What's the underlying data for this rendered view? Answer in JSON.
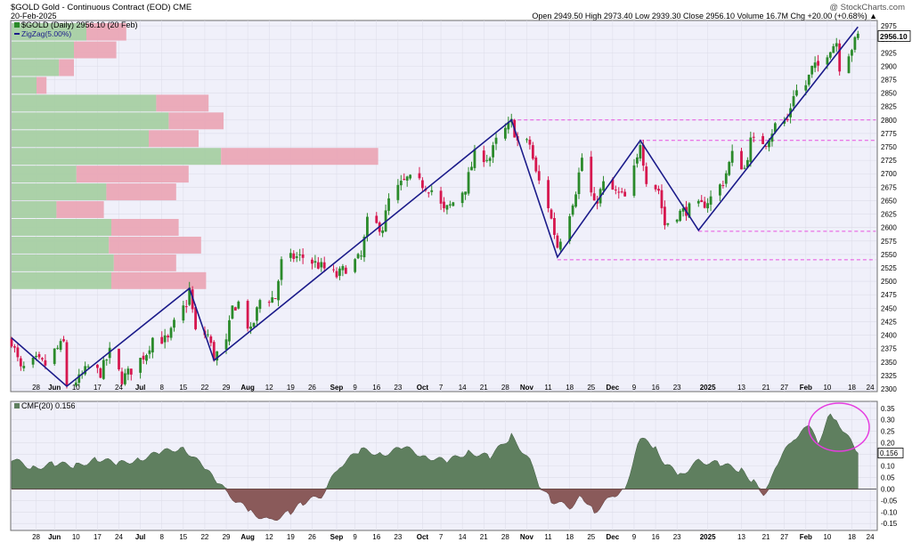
{
  "header": {
    "title": "$GOLD Gold - Continuous Contract (EOD) CME",
    "watermark": "@ StockCharts.com",
    "date": "20-Feb-2025",
    "ohlc": "Open 2949.50  High 2973.40  Low 2939.30  Close 2956.10  Volume 16.7M  Chg +20.00 (+0.68%) ▲"
  },
  "legend": {
    "price": "$GOLD (Daily) 2956.10 (20 Feb)",
    "zigzag": "ZigZag(5.00%)",
    "cmf": "CMF(20) 0.156"
  },
  "colors": {
    "up": "#2b8a2b",
    "down": "#d6174f",
    "zigzag": "#1b1b8a",
    "support": "#e84fe0",
    "cmf_pos": "#5f7f5f",
    "cmf_neg": "#8a5a5a",
    "vbp_green": "#a6cfa3",
    "vbp_red": "#eaa7b6",
    "plot_bg": "#f0f0fa"
  },
  "chart_data": {
    "type": "candlestick",
    "price_axis": {
      "ylim": [
        2295,
        2985
      ],
      "ticks": [
        2300,
        2325,
        2350,
        2375,
        2400,
        2425,
        2450,
        2475,
        2500,
        2525,
        2550,
        2575,
        2600,
        2625,
        2650,
        2675,
        2700,
        2725,
        2750,
        2775,
        2800,
        2825,
        2850,
        2875,
        2900,
        2925,
        2950,
        2975
      ],
      "last_price_label": "2956.10"
    },
    "x_axis": {
      "labels": [
        "28",
        "Jun",
        "10",
        "17",
        "24",
        "Jul",
        "8",
        "15",
        "22",
        "29",
        "Aug",
        "12",
        "19",
        "26",
        "Sep",
        "9",
        "16",
        "23",
        "Oct",
        "7",
        "14",
        "21",
        "28",
        "Nov",
        "11",
        "18",
        "25",
        "Dec",
        "9",
        "16",
        "23",
        "2025",
        "13",
        "21",
        "27",
        "Feb",
        "10",
        "18",
        "24"
      ]
    },
    "zigzag": [
      [
        "2024-05-20",
        2395
      ],
      [
        "2024-06-07",
        2305
      ],
      [
        "2024-07-17",
        2487
      ],
      [
        "2024-07-25",
        2353
      ],
      [
        "2024-10-30",
        2800
      ],
      [
        "2024-11-14",
        2545
      ],
      [
        "2024-12-11",
        2762
      ],
      [
        "2024-12-30",
        2595
      ],
      [
        "2025-02-20",
        2973
      ]
    ],
    "support_lines": [
      {
        "from": "2024-10-30",
        "level": 2800
      },
      {
        "from": "2024-12-11",
        "level": 2762
      },
      {
        "from": "2024-12-30",
        "level": 2593
      },
      {
        "from": "2024-11-14",
        "level": 2540
      }
    ],
    "price_path": [
      [
        "2024-05-20",
        2390
      ],
      [
        "2024-05-23",
        2335
      ],
      [
        "2024-05-28",
        2352
      ],
      [
        "2024-05-31",
        2345
      ],
      [
        "2024-06-03",
        2370
      ],
      [
        "2024-06-06",
        2385
      ],
      [
        "2024-06-07",
        2308
      ],
      [
        "2024-06-11",
        2318
      ],
      [
        "2024-06-14",
        2340
      ],
      [
        "2024-06-18",
        2330
      ],
      [
        "2024-06-21",
        2368
      ],
      [
        "2024-06-25",
        2318
      ],
      [
        "2024-06-28",
        2335
      ],
      [
        "2024-07-03",
        2368
      ],
      [
        "2024-07-05",
        2395
      ],
      [
        "2024-07-10",
        2390
      ],
      [
        "2024-07-12",
        2420
      ],
      [
        "2024-07-16",
        2460
      ],
      [
        "2024-07-17",
        2485
      ],
      [
        "2024-07-19",
        2405
      ],
      [
        "2024-07-23",
        2400
      ],
      [
        "2024-07-25",
        2360
      ],
      [
        "2024-07-29",
        2385
      ],
      [
        "2024-07-31",
        2450
      ],
      [
        "2024-08-02",
        2460
      ],
      [
        "2024-08-06",
        2405
      ],
      [
        "2024-08-09",
        2465
      ],
      [
        "2024-08-14",
        2470
      ],
      [
        "2024-08-16",
        2535
      ],
      [
        "2024-08-20",
        2545
      ],
      [
        "2024-08-23",
        2545
      ],
      [
        "2024-08-28",
        2530
      ],
      [
        "2024-09-03",
        2510
      ],
      [
        "2024-09-06",
        2525
      ],
      [
        "2024-09-11",
        2545
      ],
      [
        "2024-09-13",
        2610
      ],
      [
        "2024-09-18",
        2600
      ],
      [
        "2024-09-20",
        2650
      ],
      [
        "2024-09-24",
        2680
      ],
      [
        "2024-09-26",
        2690
      ],
      [
        "2024-10-01",
        2680
      ],
      [
        "2024-10-04",
        2670
      ],
      [
        "2024-10-08",
        2630
      ],
      [
        "2024-10-10",
        2640
      ],
      [
        "2024-10-15",
        2675
      ],
      [
        "2024-10-18",
        2735
      ],
      [
        "2024-10-23",
        2730
      ],
      [
        "2024-10-25",
        2760
      ],
      [
        "2024-10-30",
        2795
      ],
      [
        "2024-11-01",
        2760
      ],
      [
        "2024-11-05",
        2755
      ],
      [
        "2024-11-07",
        2700
      ],
      [
        "2024-11-11",
        2640
      ],
      [
        "2024-11-14",
        2565
      ],
      [
        "2024-11-18",
        2630
      ],
      [
        "2024-11-20",
        2670
      ],
      [
        "2024-11-22",
        2730
      ],
      [
        "2024-11-26",
        2640
      ],
      [
        "2024-11-29",
        2680
      ],
      [
        "2024-12-03",
        2665
      ],
      [
        "2024-12-06",
        2655
      ],
      [
        "2024-12-10",
        2725
      ],
      [
        "2024-12-11",
        2760
      ],
      [
        "2024-12-13",
        2690
      ],
      [
        "2024-12-17",
        2670
      ],
      [
        "2024-12-19",
        2605
      ],
      [
        "2024-12-23",
        2625
      ],
      [
        "2024-12-27",
        2635
      ],
      [
        "2024-12-31",
        2640
      ],
      [
        "2025-01-03",
        2655
      ],
      [
        "2025-01-07",
        2685
      ],
      [
        "2025-01-10",
        2735
      ],
      [
        "2025-01-14",
        2710
      ],
      [
        "2025-01-16",
        2760
      ],
      [
        "2025-01-21",
        2760
      ],
      [
        "2025-01-24",
        2790
      ],
      [
        "2025-01-28",
        2800
      ],
      [
        "2025-01-30",
        2850
      ],
      [
        "2025-02-03",
        2865
      ],
      [
        "2025-02-05",
        2895
      ],
      [
        "2025-02-07",
        2900
      ],
      [
        "2025-02-11",
        2935
      ],
      [
        "2025-02-13",
        2945
      ],
      [
        "2025-02-14",
        2900
      ],
      [
        "2025-02-18",
        2935
      ],
      [
        "2025-02-20",
        2956
      ]
    ],
    "volume_by_price": [
      {
        "range": [
          2946,
          2980
        ],
        "up": 0.3,
        "down": 0.16
      },
      {
        "range": [
          2913,
          2946
        ],
        "up": 0.25,
        "down": 0.17
      },
      {
        "range": [
          2880,
          2913
        ],
        "up": 0.19,
        "down": 0.06
      },
      {
        "range": [
          2847,
          2880
        ],
        "up": 0.1,
        "down": 0.04
      },
      {
        "range": [
          2814,
          2847
        ],
        "up": 0.58,
        "down": 0.21
      },
      {
        "range": [
          2781,
          2814
        ],
        "up": 0.63,
        "down": 0.22
      },
      {
        "range": [
          2748,
          2781
        ],
        "up": 0.55,
        "down": 0.2
      },
      {
        "range": [
          2715,
          2748
        ],
        "up": 0.84,
        "down": 0.63
      },
      {
        "range": [
          2682,
          2715
        ],
        "up": 0.26,
        "down": 0.45
      },
      {
        "range": [
          2649,
          2682
        ],
        "up": 0.38,
        "down": 0.28
      },
      {
        "range": [
          2616,
          2649
        ],
        "up": 0.18,
        "down": 0.19
      },
      {
        "range": [
          2583,
          2616
        ],
        "up": 0.4,
        "down": 0.27
      },
      {
        "range": [
          2550,
          2583
        ],
        "up": 0.39,
        "down": 0.37
      },
      {
        "range": [
          2517,
          2550
        ],
        "up": 0.41,
        "down": 0.25
      },
      {
        "range": [
          2484,
          2517
        ],
        "up": 0.4,
        "down": 0.38
      }
    ],
    "cmf": {
      "label": "CMF(20)",
      "value_label": "0.156",
      "ylim": [
        -0.18,
        0.38
      ],
      "ticks": [
        -0.15,
        -0.1,
        -0.05,
        0.0,
        0.05,
        0.1,
        0.15,
        0.2,
        0.25,
        0.3,
        0.35
      ],
      "points": [
        [
          "2024-05-20",
          0.13
        ],
        [
          "2024-05-27",
          0.09
        ],
        [
          "2024-06-03",
          0.11
        ],
        [
          "2024-06-10",
          0.1
        ],
        [
          "2024-06-17",
          0.13
        ],
        [
          "2024-06-24",
          0.11
        ],
        [
          "2024-07-01",
          0.13
        ],
        [
          "2024-07-08",
          0.16
        ],
        [
          "2024-07-15",
          0.18
        ],
        [
          "2024-07-22",
          0.09
        ],
        [
          "2024-07-26",
          0.03
        ],
        [
          "2024-08-01",
          -0.05
        ],
        [
          "2024-08-06",
          -0.1
        ],
        [
          "2024-08-12",
          -0.14
        ],
        [
          "2024-08-19",
          -0.1
        ],
        [
          "2024-08-23",
          -0.06
        ],
        [
          "2024-08-29",
          -0.03
        ],
        [
          "2024-09-04",
          0.1
        ],
        [
          "2024-09-11",
          0.17
        ],
        [
          "2024-09-18",
          0.15
        ],
        [
          "2024-09-25",
          0.18
        ],
        [
          "2024-10-02",
          0.14
        ],
        [
          "2024-10-09",
          0.12
        ],
        [
          "2024-10-16",
          0.16
        ],
        [
          "2024-10-23",
          0.14
        ],
        [
          "2024-10-30",
          0.23
        ],
        [
          "2024-11-05",
          0.12
        ],
        [
          "2024-11-08",
          0.02
        ],
        [
          "2024-11-12",
          -0.05
        ],
        [
          "2024-11-18",
          -0.08
        ],
        [
          "2024-11-22",
          -0.03
        ],
        [
          "2024-11-26",
          -0.1
        ],
        [
          "2024-12-02",
          -0.03
        ],
        [
          "2024-12-06",
          0.0
        ],
        [
          "2024-12-11",
          0.22
        ],
        [
          "2024-12-16",
          0.18
        ],
        [
          "2024-12-19",
          0.11
        ],
        [
          "2024-12-24",
          0.06
        ],
        [
          "2024-12-30",
          0.12
        ],
        [
          "2025-01-06",
          0.11
        ],
        [
          "2025-01-13",
          0.08
        ],
        [
          "2025-01-17",
          0.03
        ],
        [
          "2025-01-21",
          -0.03
        ],
        [
          "2025-01-24",
          0.1
        ],
        [
          "2025-01-30",
          0.22
        ],
        [
          "2025-02-04",
          0.27
        ],
        [
          "2025-02-07",
          0.2
        ],
        [
          "2025-02-11",
          0.33
        ],
        [
          "2025-02-13",
          0.3
        ],
        [
          "2025-02-16",
          0.24
        ],
        [
          "2025-02-20",
          0.156
        ]
      ]
    }
  }
}
